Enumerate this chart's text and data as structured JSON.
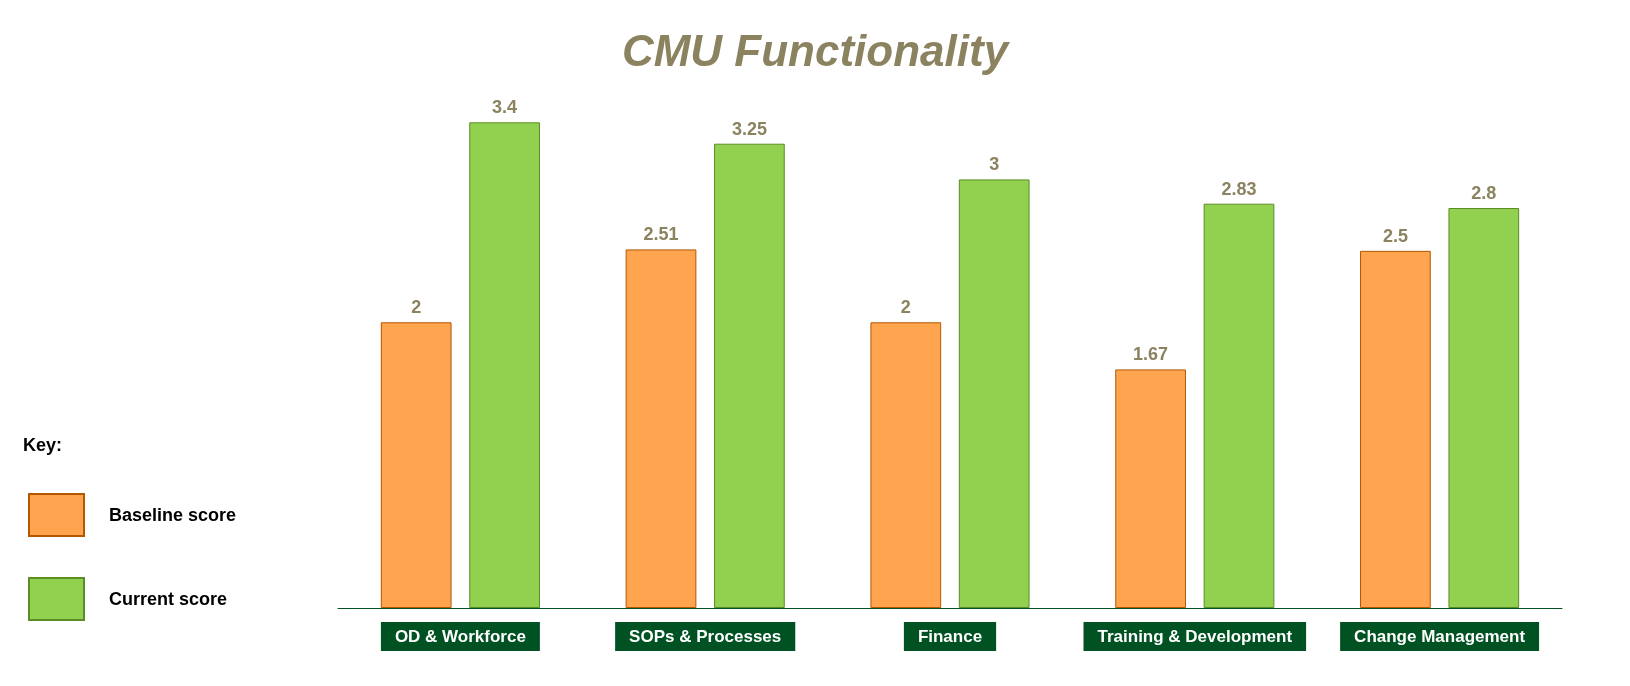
{
  "chart_data": {
    "type": "bar",
    "title": "CMU Functionality",
    "categories": [
      "OD & Workforce",
      "SOPs & Processes",
      "Finance",
      "Training & Development",
      "Change Management"
    ],
    "series": [
      {
        "name": "Baseline score",
        "color": "#ffa54f",
        "values": [
          2,
          2.51,
          2,
          1.67,
          2.5
        ]
      },
      {
        "name": "Current score",
        "color": "#92d050",
        "values": [
          3.4,
          3.25,
          3,
          2.83,
          2.8
        ]
      }
    ],
    "data_labels": true,
    "legend": "left",
    "legend_title": "Key:",
    "tick_labels": "x",
    "grid": false
  }
}
